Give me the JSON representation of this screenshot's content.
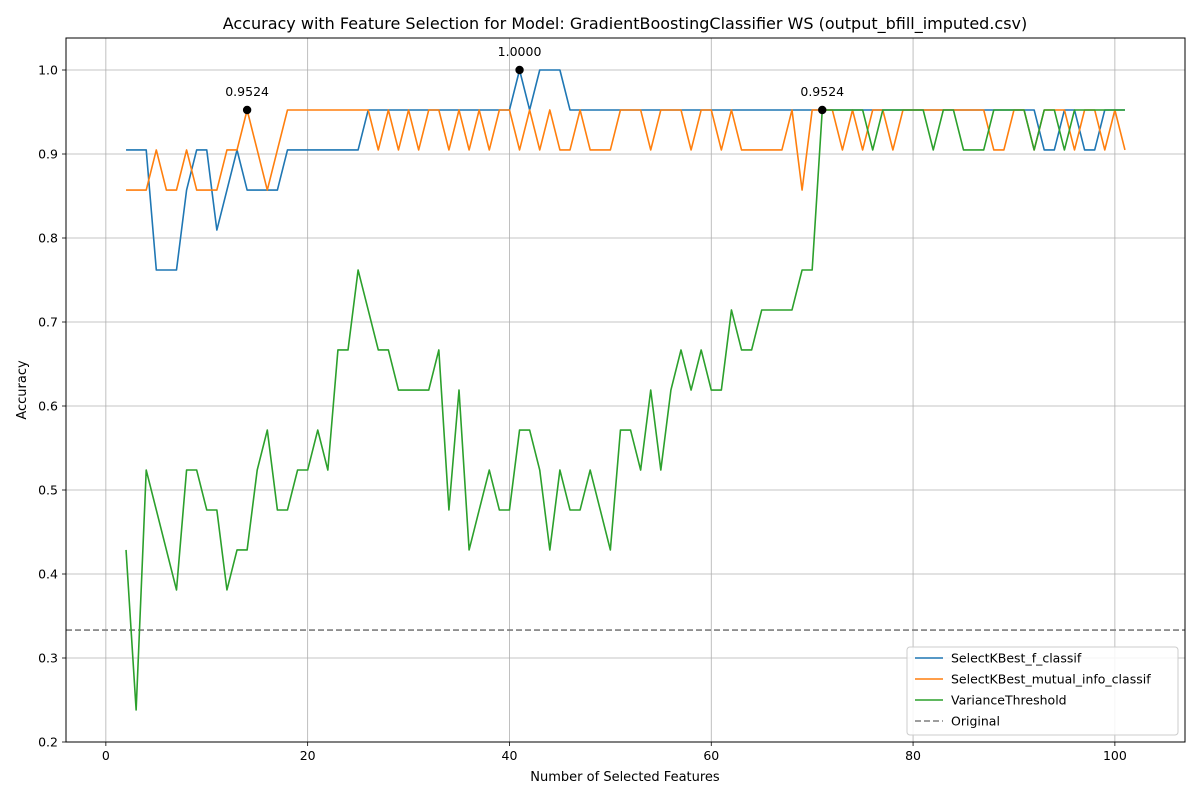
{
  "chart_data": {
    "type": "line",
    "title": "Accuracy with Feature Selection for Model: GradientBoostingClassifier WS (output_bfill_imputed.csv)",
    "xlabel": "Number of Selected Features",
    "ylabel": "Accuracy",
    "xlim": [
      -3.95,
      106.95
    ],
    "ylim": [
      0.2,
      1.0381
    ],
    "xticks": [
      0,
      20,
      40,
      60,
      80,
      100
    ],
    "yticks": [
      0.2,
      0.3,
      0.4,
      0.5,
      0.6,
      0.7,
      0.8,
      0.9,
      1.0
    ],
    "grid": true,
    "legend_position": "lower-right",
    "x": [
      2,
      3,
      4,
      5,
      6,
      7,
      8,
      9,
      10,
      11,
      12,
      13,
      14,
      15,
      16,
      17,
      18,
      19,
      20,
      21,
      22,
      23,
      24,
      25,
      26,
      27,
      28,
      29,
      30,
      31,
      32,
      33,
      34,
      35,
      36,
      37,
      38,
      39,
      40,
      41,
      42,
      43,
      44,
      45,
      46,
      47,
      48,
      49,
      50,
      51,
      52,
      53,
      54,
      55,
      56,
      57,
      58,
      59,
      60,
      61,
      62,
      63,
      64,
      65,
      66,
      67,
      68,
      69,
      70,
      71,
      72,
      73,
      74,
      75,
      76,
      77,
      78,
      79,
      80,
      81,
      82,
      83,
      84,
      85,
      86,
      87,
      88,
      89,
      90,
      91,
      92,
      93,
      94,
      95,
      96,
      97,
      98,
      99,
      100,
      101
    ],
    "series": [
      {
        "name": "SelectKBest_f_classif",
        "color": "#1f77b4",
        "style": "solid",
        "values": [
          0.9048,
          0.9048,
          0.9048,
          0.7619,
          0.7619,
          0.7619,
          0.8571,
          0.9048,
          0.9048,
          0.8095,
          0.8571,
          0.9048,
          0.8571,
          0.8571,
          0.8571,
          0.8571,
          0.9048,
          0.9048,
          0.9048,
          0.9048,
          0.9048,
          0.9048,
          0.9048,
          0.9048,
          0.9524,
          0.9524,
          0.9524,
          0.9524,
          0.9524,
          0.9524,
          0.9524,
          0.9524,
          0.9524,
          0.9524,
          0.9524,
          0.9524,
          0.9524,
          0.9524,
          0.9524,
          1.0,
          0.9524,
          1.0,
          1.0,
          1.0,
          0.9524,
          0.9524,
          0.9524,
          0.9524,
          0.9524,
          0.9524,
          0.9524,
          0.9524,
          0.9524,
          0.9524,
          0.9524,
          0.9524,
          0.9524,
          0.9524,
          0.9524,
          0.9524,
          0.9524,
          0.9524,
          0.9524,
          0.9524,
          0.9524,
          0.9524,
          0.9524,
          0.9524,
          0.9524,
          0.9524,
          0.9524,
          0.9524,
          0.9524,
          0.9524,
          0.9524,
          0.9524,
          0.9524,
          0.9524,
          0.9524,
          0.9524,
          0.9524,
          0.9524,
          0.9524,
          0.9524,
          0.9524,
          0.9524,
          0.9524,
          0.9524,
          0.9524,
          0.9524,
          0.9524,
          0.9048,
          0.9048,
          0.9524,
          0.9524,
          0.9048,
          0.9048,
          0.9524,
          0.9524,
          0.9524
        ]
      },
      {
        "name": "SelectKBest_mutual_info_classif",
        "color": "#ff7f0e",
        "style": "solid",
        "values": [
          0.8571,
          0.8571,
          0.8571,
          0.9048,
          0.8571,
          0.8571,
          0.9048,
          0.8571,
          0.8571,
          0.8571,
          0.9048,
          0.9048,
          0.9524,
          0.9048,
          0.8571,
          0.9048,
          0.9524,
          0.9524,
          0.9524,
          0.9524,
          0.9524,
          0.9524,
          0.9524,
          0.9524,
          0.9524,
          0.9048,
          0.9524,
          0.9048,
          0.9524,
          0.9048,
          0.9524,
          0.9524,
          0.9048,
          0.9524,
          0.9048,
          0.9524,
          0.9048,
          0.9524,
          0.9524,
          0.9048,
          0.9524,
          0.9048,
          0.9524,
          0.9048,
          0.9048,
          0.9524,
          0.9048,
          0.9048,
          0.9048,
          0.9524,
          0.9524,
          0.9524,
          0.9048,
          0.9524,
          0.9524,
          0.9524,
          0.9048,
          0.9524,
          0.9524,
          0.9048,
          0.9524,
          0.9048,
          0.9048,
          0.9048,
          0.9048,
          0.9048,
          0.9524,
          0.8571,
          0.9524,
          0.9524,
          0.9524,
          0.9048,
          0.9524,
          0.9048,
          0.9524,
          0.9524,
          0.9048,
          0.9524,
          0.9524,
          0.9524,
          0.9524,
          0.9524,
          0.9524,
          0.9524,
          0.9524,
          0.9524,
          0.9048,
          0.9048,
          0.9524,
          0.9524,
          0.9048,
          0.9524,
          0.9524,
          0.9524,
          0.9048,
          0.9524,
          0.9524,
          0.9048,
          0.9524,
          0.9048
        ]
      },
      {
        "name": "VarianceThreshold",
        "color": "#2ca02c",
        "style": "solid",
        "values": [
          0.4286,
          0.2381,
          0.5238,
          0.4762,
          0.4286,
          0.381,
          0.5238,
          0.5238,
          0.4762,
          0.4762,
          0.381,
          0.4286,
          0.4286,
          0.5238,
          0.5714,
          0.4762,
          0.4762,
          0.5238,
          0.5238,
          0.5714,
          0.5238,
          0.6667,
          0.6667,
          0.7619,
          0.7143,
          0.6667,
          0.6667,
          0.619,
          0.619,
          0.619,
          0.619,
          0.6667,
          0.4762,
          0.619,
          0.4286,
          0.4762,
          0.5238,
          0.4762,
          0.4762,
          0.5714,
          0.5714,
          0.5238,
          0.4286,
          0.5238,
          0.4762,
          0.4762,
          0.5238,
          0.4762,
          0.4286,
          0.5714,
          0.5714,
          0.5238,
          0.619,
          0.5238,
          0.619,
          0.6667,
          0.619,
          0.6667,
          0.619,
          0.619,
          0.7143,
          0.6667,
          0.6667,
          0.7143,
          0.7143,
          0.7143,
          0.7143,
          0.7619,
          0.7619,
          0.9524,
          0.9524,
          0.9524,
          0.9524,
          0.9524,
          0.9048,
          0.9524,
          0.9524,
          0.9524,
          0.9524,
          0.9524,
          0.9048,
          0.9524,
          0.9524,
          0.9048,
          0.9048,
          0.9048,
          0.9524,
          0.9524,
          0.9524,
          0.9524,
          0.9048,
          0.9524,
          0.9524,
          0.9048,
          0.9524,
          0.9524,
          0.9524,
          0.9524,
          0.9524,
          0.9524
        ]
      }
    ],
    "reference_line": {
      "name": "Original",
      "color": "#7f7f7f",
      "style": "dashed",
      "y": 0.3333
    },
    "annotations": [
      {
        "x": 14,
        "y": 0.9524,
        "text": "0.9524"
      },
      {
        "x": 41,
        "y": 1.0,
        "text": "1.0000"
      },
      {
        "x": 71,
        "y": 0.9524,
        "text": "0.9524"
      }
    ]
  }
}
